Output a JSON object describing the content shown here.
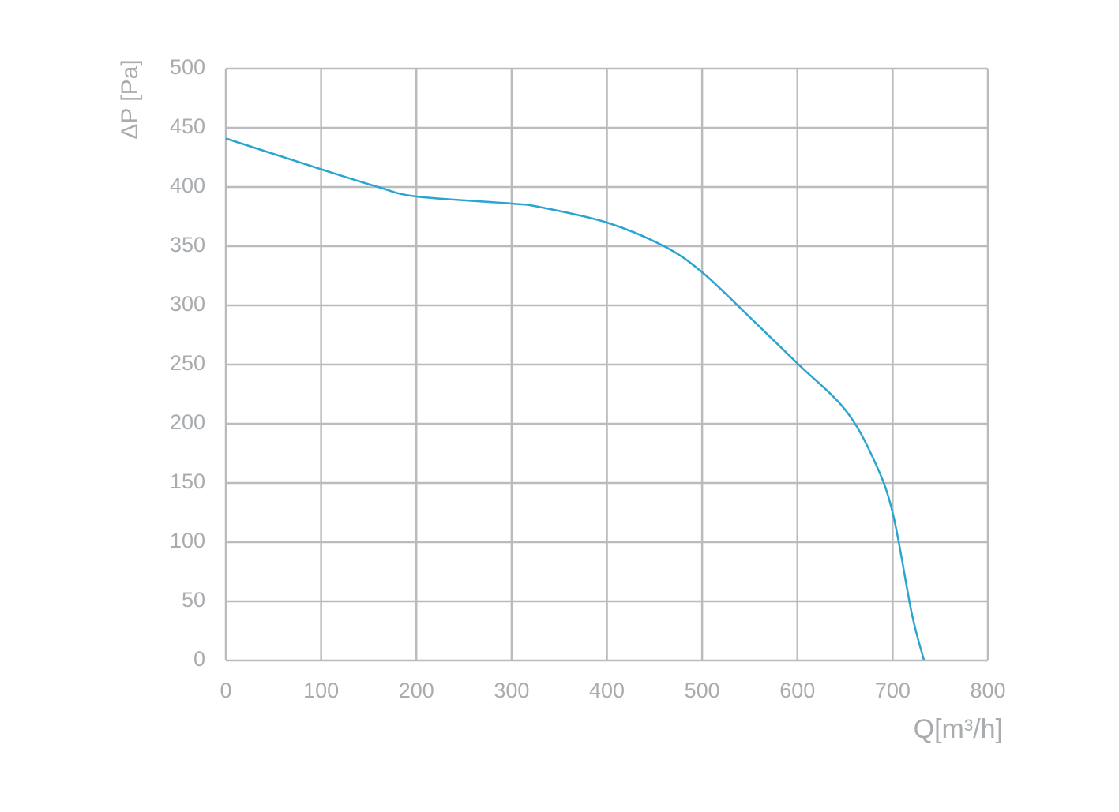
{
  "chart_data": {
    "type": "line",
    "x_label": "Q[m³/h]",
    "y_label": "ΔP [Pa]",
    "x": [
      0,
      100,
      160,
      200,
      300,
      330,
      400,
      460,
      500,
      550,
      600,
      650,
      680,
      700,
      720,
      733
    ],
    "series": [
      {
        "color": "#2aa4d0",
        "values": [
          441,
          415,
          400,
          392,
          386,
          383,
          370,
          350,
          328,
          290,
          251,
          212,
          170,
          125,
          40,
          0
        ]
      }
    ],
    "xlim": [
      0,
      800
    ],
    "xticks": [
      0,
      100,
      200,
      300,
      400,
      500,
      600,
      700,
      800
    ],
    "ylim": [
      0,
      500
    ],
    "yticks": [
      0,
      50,
      100,
      150,
      200,
      250,
      300,
      350,
      400,
      450,
      500
    ],
    "grid": true
  }
}
